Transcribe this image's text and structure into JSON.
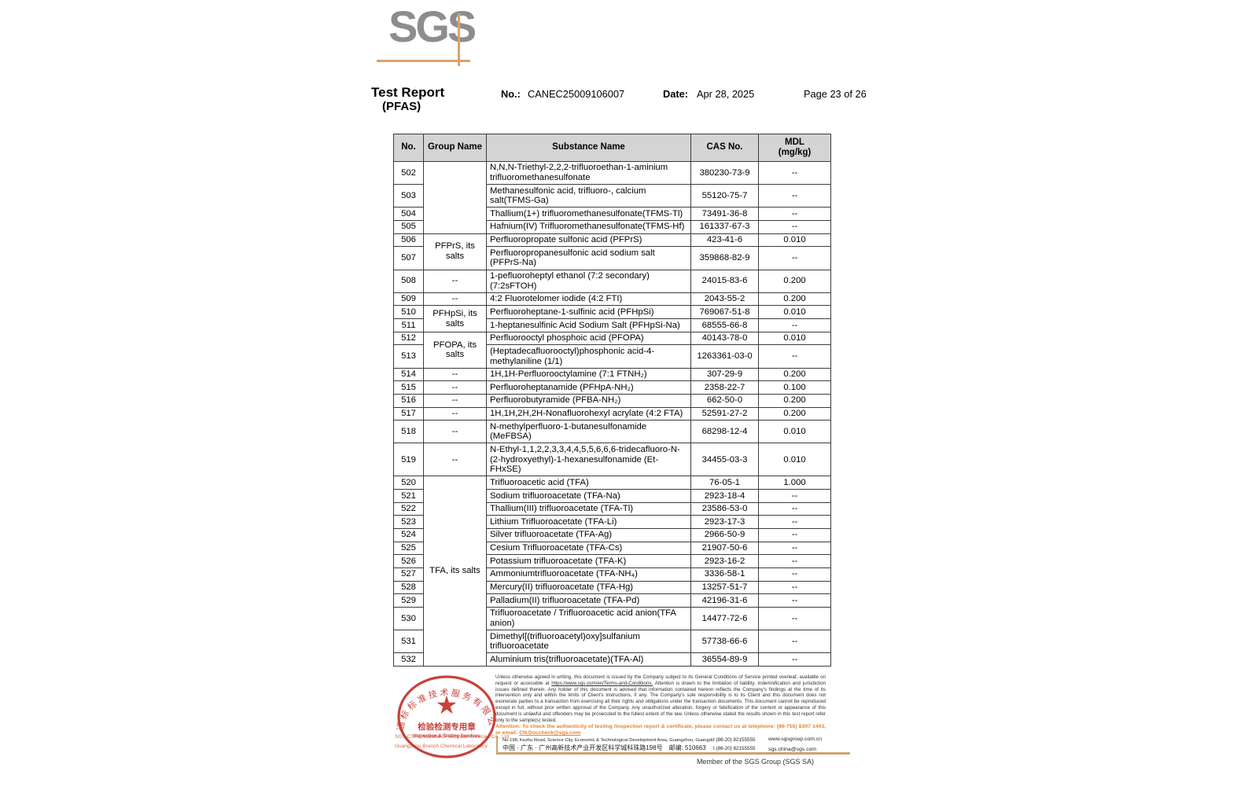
{
  "colors": {
    "brand_orange": "#dfa164",
    "stamp_red": "#c4332b",
    "attention_orange": "#e8822a",
    "table_header_gray": "#d4d4d4"
  },
  "header": {
    "logo_text": "SGS",
    "title_line1": "Test Report",
    "title_line2": "(PFAS)",
    "no_label": "No.:",
    "no_value": "CANEC25009106007",
    "date_label": "Date:",
    "date_value": "Apr 28, 2025",
    "page": "Page 23 of 26"
  },
  "table": {
    "headers": [
      "No.",
      "Group Name",
      "Substance Name",
      "CAS No.",
      "MDL"
    ],
    "header_mdl_unit": "(mg/kg)",
    "rows": [
      {
        "no": "502",
        "group": "",
        "span": 4,
        "substance": "N,N,N-Triethyl-2,2,2-trifluoroethan-1-aminium trifluoromethanesulfonate",
        "cas": "380230-73-9",
        "mdl": "--"
      },
      {
        "no": "503",
        "substance": "Methanesulfonic acid, trifluoro-, calcium salt(TFMS-Ga)",
        "cas": "55120-75-7",
        "mdl": "--"
      },
      {
        "no": "504",
        "substance": "Thallium(1+) trifluoromethanesulfonate(TFMS-Tl)",
        "cas": "73491-36-8",
        "mdl": "--"
      },
      {
        "no": "505",
        "substance": "Hafnium(IV) Trifluoromethanesulfonate(TFMS-Hf)",
        "cas": "161337-67-3",
        "mdl": "--"
      },
      {
        "no": "506",
        "group": "PFPrS, its salts",
        "span": 2,
        "substance": "Perfluoropropate sulfonic acid (PFPrS)",
        "cas": "423-41-6",
        "mdl": "0.010"
      },
      {
        "no": "507",
        "substance": "Perfluoropropanesulfonic acid sodium salt (PFPrS-Na)",
        "cas": "359868-82-9",
        "mdl": "--"
      },
      {
        "no": "508",
        "group": "--",
        "span": 1,
        "substance": "1-pefluoroheptyl ethanol (7:2 secondary) (7:2sFTOH)",
        "cas": "24015-83-6",
        "mdl": "0.200"
      },
      {
        "no": "509",
        "group": "--",
        "span": 1,
        "substance": "4:2 Fluorotelomer iodide (4:2 FTI)",
        "cas": "2043-55-2",
        "mdl": "0.200"
      },
      {
        "no": "510",
        "group": "PFHpSi, its salts",
        "span": 2,
        "substance": "Perfluoroheptane-1-sulfinic acid (PFHpSi)",
        "cas": "769067-51-8",
        "mdl": "0.010"
      },
      {
        "no": "511",
        "substance": "1-heptanesulfinic Acid Sodium Salt (PFHpSi-Na)",
        "cas": "68555-66-8",
        "mdl": "--"
      },
      {
        "no": "512",
        "group": "PFOPA, its salts",
        "span": 2,
        "substance": "Perfluorooctyl phosphoic acid (PFOPA)",
        "cas": "40143-78-0",
        "mdl": "0.010"
      },
      {
        "no": "513",
        "substance": "(Heptadecafluorooctyl)phosphonic acid-4-methylaniline (1/1)",
        "cas": "1263361-03-0",
        "mdl": "--"
      },
      {
        "no": "514",
        "group": "--",
        "span": 1,
        "substance": "1H,1H-Perfluorooctylamine (7:1 FTNH₂)",
        "cas": "307-29-9",
        "mdl": "0.200"
      },
      {
        "no": "515",
        "group": "--",
        "span": 1,
        "substance": "Perfluoroheptanamide (PFHpA-NH₂)",
        "cas": "2358-22-7",
        "mdl": "0.100"
      },
      {
        "no": "516",
        "group": "--",
        "span": 1,
        "substance": "Perfluorobutyramide (PFBA-NH₂)",
        "cas": "662-50-0",
        "mdl": "0.200"
      },
      {
        "no": "517",
        "group": "--",
        "span": 1,
        "substance": "1H,1H,2H,2H-Nonafluorohexyl acrylate (4:2 FTA)",
        "cas": "52591-27-2",
        "mdl": "0.200"
      },
      {
        "no": "518",
        "group": "--",
        "span": 1,
        "substance": "N-methylperfluoro-1-butanesulfonamide (MeFBSA)",
        "cas": "68298-12-4",
        "mdl": "0.010"
      },
      {
        "no": "519",
        "group": "--",
        "span": 1,
        "substance": "N-Ethyl-1,1,2,2,3,3,4,4,5,5,6,6,6-tridecafluoro-N-(2-hydroxyethyl)-1-hexanesulfonamide (Et-FHxSE)",
        "cas": "34455-03-3",
        "mdl": "0.010"
      },
      {
        "no": "520",
        "group": "TFA, its salts",
        "span": 13,
        "substance": "Trifluoroacetic acid (TFA)",
        "cas": "76-05-1",
        "mdl": "1.000"
      },
      {
        "no": "521",
        "substance": "Sodium trifluoroacetate (TFA-Na)",
        "cas": "2923-18-4",
        "mdl": "--"
      },
      {
        "no": "522",
        "substance": "Thallium(III) trifluoroacetate (TFA-Tl)",
        "cas": "23586-53-0",
        "mdl": "--"
      },
      {
        "no": "523",
        "substance": "Lithium Trifluoroacetate (TFA-Li)",
        "cas": "2923-17-3",
        "mdl": "--"
      },
      {
        "no": "524",
        "substance": "Silver trifluoroacetate (TFA-Ag)",
        "cas": "2966-50-9",
        "mdl": "--"
      },
      {
        "no": "525",
        "substance": "Cesium Trifluoroacetate (TFA-Cs)",
        "cas": "21907-50-6",
        "mdl": "--"
      },
      {
        "no": "526",
        "substance": "Potassium trifluoroacetate (TFA-K)",
        "cas": "2923-16-2",
        "mdl": "--"
      },
      {
        "no": "527",
        "substance": "Ammoniumtrifluoroacetate (TFA-NH₄)",
        "cas": "3336-58-1",
        "mdl": "--"
      },
      {
        "no": "528",
        "substance": "Mercury(II) trifluoroacetate (TFA-Hg)",
        "cas": "13257-51-7",
        "mdl": "--"
      },
      {
        "no": "529",
        "substance": "Palladium(II) trifluoroacetate (TFA-Pd)",
        "cas": "42196-31-6",
        "mdl": "--"
      },
      {
        "no": "530",
        "substance": "Trifluoroacetate / Trifluoroacetic acid anion(TFA anion)",
        "cas": "14477-72-6",
        "mdl": "--"
      },
      {
        "no": "531",
        "substance": "Dimethyl[(trifluoroacetyl)oxy]sulfanium trifluoroacetate",
        "cas": "57738-66-6",
        "mdl": "--"
      },
      {
        "no": "532",
        "substance": "Aluminium tris(trifluoroacetate)(TFA-Al)",
        "cas": "36554-89-9",
        "mdl": "--"
      }
    ]
  },
  "footer": {
    "disclaimer_pre": "Unless otherwise agreed in writing, this document is issued by the Company subject to its General Conditions of Service printed overleaf, available on request or accessible at ",
    "disclaimer_link": "https://www.sgs.com/en/Terms-and-Conditions.",
    "disclaimer_post": " Attention is drawn to the limitation of liability, indemnification and jurisdiction issues defined therein. Any holder of this document is advised that information contained hereon reflects the Company's findings at the time of its intervention only and within the limits of Client's instructions, if any. The Company's sole responsibility is to its Client and this document does not exonerate parties to a transaction from exercising all their rights and obligations under the transaction documents. This document cannot be reproduced except in full, without prior written approval of the Company. Any unauthorized alteration, forgery or falsification of the content or appearance of this document is unlawful and offenders may be prosecuted to the fullest extent of the law. Unless otherwise stated the results shown in this test report refer only to the sample(s) tested.",
    "attention_pre": "Attention: To check the authenticity of testing /inspection report & certificate, please contact us at telephone: (86-755) 8307 1443, or email: ",
    "attention_email": "CN.Doccheck@sgs.com",
    "address_en": "No.198, Kezhu Road, Science City, Economic & Technological Development Area, Guangzhou, Guangdong, China 510663",
    "address_cn": "中国 · 广东 · 广州高新技术产业开发区科学城科珠路198号　邮编: 510663",
    "phone": "t (86-20) 82155555",
    "web": "www.sgsgroup.com.cn",
    "email": "sgs.china@sgs.com",
    "member": "Member of the SGS Group (SGS SA)",
    "stamp": {
      "ring_text": "通标标准技术服务有限公司广州分公司",
      "star": "★",
      "inner_cn": "检验检测专用章",
      "inner_en": "Inspection & Testing Services",
      "company_line1": "SGS-CSTC Standards Technical Services Co., Ltd.",
      "company_line2": "Guangzhou Branch Chemical Laboratory."
    }
  }
}
